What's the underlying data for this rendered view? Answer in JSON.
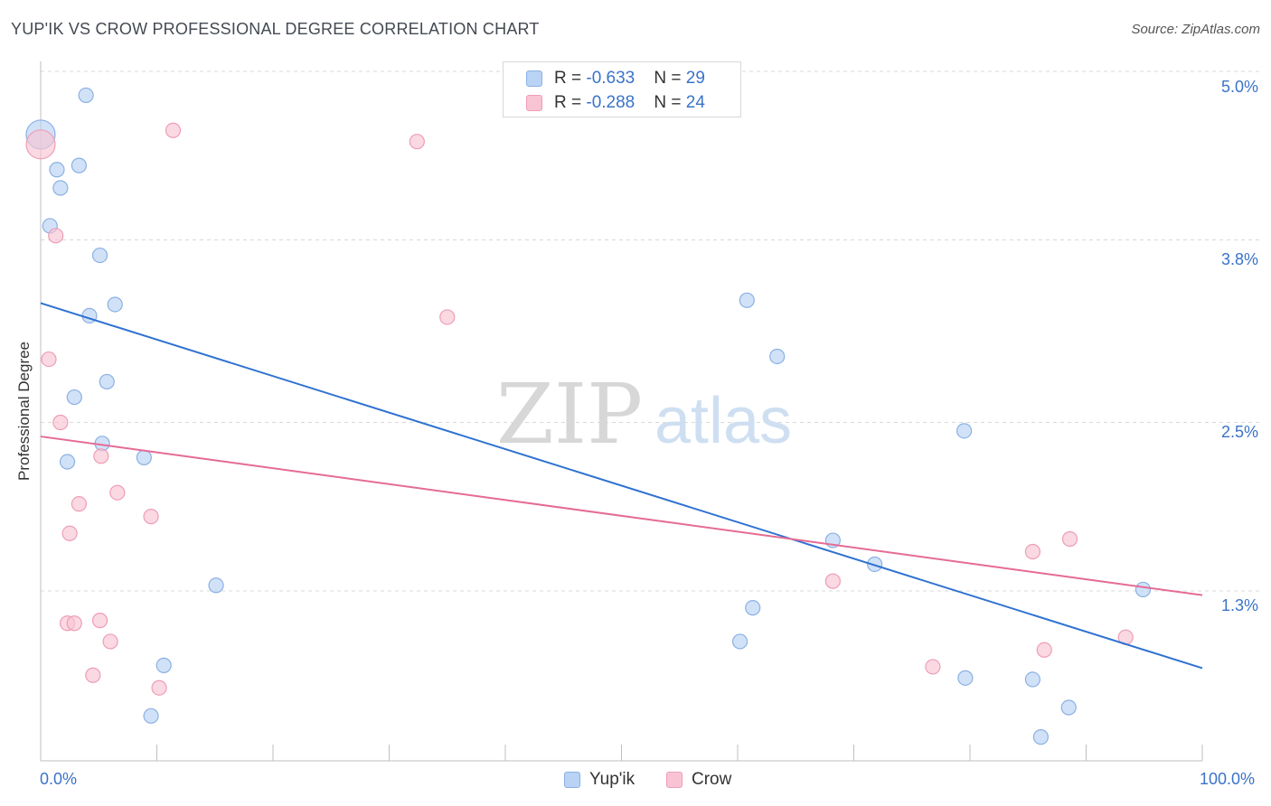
{
  "title": "YUP'IK VS CROW PROFESSIONAL DEGREE CORRELATION CHART",
  "source": "Source: ZipAtlas.com",
  "watermark": {
    "zip": "ZIP",
    "atlas": "atlas"
  },
  "legend_top": {
    "rows": [
      {
        "r_label": "R = ",
        "r_value": "-0.633",
        "n_label": "N = ",
        "n_value": "29"
      },
      {
        "r_label": "R = ",
        "r_value": "-0.288",
        "n_label": "N = ",
        "n_value": "24"
      }
    ]
  },
  "legend_bottom": [
    "Yup'ik",
    "Crow"
  ],
  "colors": {
    "yupik_fill": "#b9d3f5",
    "yupik_stroke": "#8ab0e3",
    "yupik_line": "#2f72d1",
    "crow_fill": "#f8c4d3",
    "crow_stroke": "#ee9db6",
    "crow_line": "#e56b95",
    "tick": "#3a73c9",
    "grid": "#d9d9d9"
  },
  "chart_data": {
    "type": "scatter",
    "title": "YUP'IK VS CROW PROFESSIONAL DEGREE CORRELATION CHART",
    "xlabel": "",
    "ylabel": "Professional Degree",
    "xlim": [
      0,
      100
    ],
    "ylim": [
      0.0,
      5.2
    ],
    "x_tick_labels": [
      "0.0%",
      "100.0%"
    ],
    "y_ticks": [
      1.3,
      2.5,
      3.8,
      5.0
    ],
    "y_tick_labels": [
      "1.3%",
      "2.5%",
      "3.8%",
      "5.0%"
    ],
    "series": [
      {
        "name": "Yup'ik",
        "points": [
          {
            "x": 0.0,
            "y": 4.55,
            "big": true
          },
          {
            "x": 3.9,
            "y": 4.83
          },
          {
            "x": 1.4,
            "y": 4.3
          },
          {
            "x": 3.3,
            "y": 4.33
          },
          {
            "x": 1.7,
            "y": 4.17
          },
          {
            "x": 0.8,
            "y": 3.9
          },
          {
            "x": 5.1,
            "y": 3.69
          },
          {
            "x": 6.4,
            "y": 3.34
          },
          {
            "x": 4.2,
            "y": 3.26
          },
          {
            "x": 5.7,
            "y": 2.79
          },
          {
            "x": 2.9,
            "y": 2.68
          },
          {
            "x": 5.3,
            "y": 2.35
          },
          {
            "x": 2.3,
            "y": 2.22
          },
          {
            "x": 8.9,
            "y": 2.25
          },
          {
            "x": 60.8,
            "y": 3.37
          },
          {
            "x": 63.4,
            "y": 2.97
          },
          {
            "x": 79.5,
            "y": 2.44
          },
          {
            "x": 68.2,
            "y": 1.66
          },
          {
            "x": 71.8,
            "y": 1.49
          },
          {
            "x": 94.9,
            "y": 1.31
          },
          {
            "x": 15.1,
            "y": 1.34
          },
          {
            "x": 61.3,
            "y": 1.18
          },
          {
            "x": 60.2,
            "y": 0.94
          },
          {
            "x": 10.6,
            "y": 0.77
          },
          {
            "x": 79.6,
            "y": 0.68
          },
          {
            "x": 85.4,
            "y": 0.67
          },
          {
            "x": 88.5,
            "y": 0.47
          },
          {
            "x": 9.5,
            "y": 0.41
          },
          {
            "x": 86.1,
            "y": 0.26
          }
        ],
        "trendline": {
          "x": [
            0,
            100
          ],
          "y": [
            3.35,
            0.75
          ]
        }
      },
      {
        "name": "Crow",
        "points": [
          {
            "x": 0.0,
            "y": 4.48,
            "big": true
          },
          {
            "x": 11.4,
            "y": 4.58
          },
          {
            "x": 32.4,
            "y": 4.5
          },
          {
            "x": 1.3,
            "y": 3.83
          },
          {
            "x": 35.0,
            "y": 3.25
          },
          {
            "x": 0.7,
            "y": 2.95
          },
          {
            "x": 1.7,
            "y": 2.5
          },
          {
            "x": 5.2,
            "y": 2.26
          },
          {
            "x": 6.6,
            "y": 2.0
          },
          {
            "x": 3.3,
            "y": 1.92
          },
          {
            "x": 9.5,
            "y": 1.83
          },
          {
            "x": 2.5,
            "y": 1.71
          },
          {
            "x": 85.4,
            "y": 1.58
          },
          {
            "x": 88.6,
            "y": 1.67
          },
          {
            "x": 68.2,
            "y": 1.37
          },
          {
            "x": 2.3,
            "y": 1.07
          },
          {
            "x": 2.9,
            "y": 1.07
          },
          {
            "x": 5.1,
            "y": 1.09
          },
          {
            "x": 6.0,
            "y": 0.94
          },
          {
            "x": 93.4,
            "y": 0.97
          },
          {
            "x": 86.4,
            "y": 0.88
          },
          {
            "x": 76.8,
            "y": 0.76
          },
          {
            "x": 4.5,
            "y": 0.7
          },
          {
            "x": 10.2,
            "y": 0.61
          }
        ],
        "trendline": {
          "x": [
            0,
            100
          ],
          "y": [
            2.4,
            1.27
          ]
        }
      }
    ]
  }
}
